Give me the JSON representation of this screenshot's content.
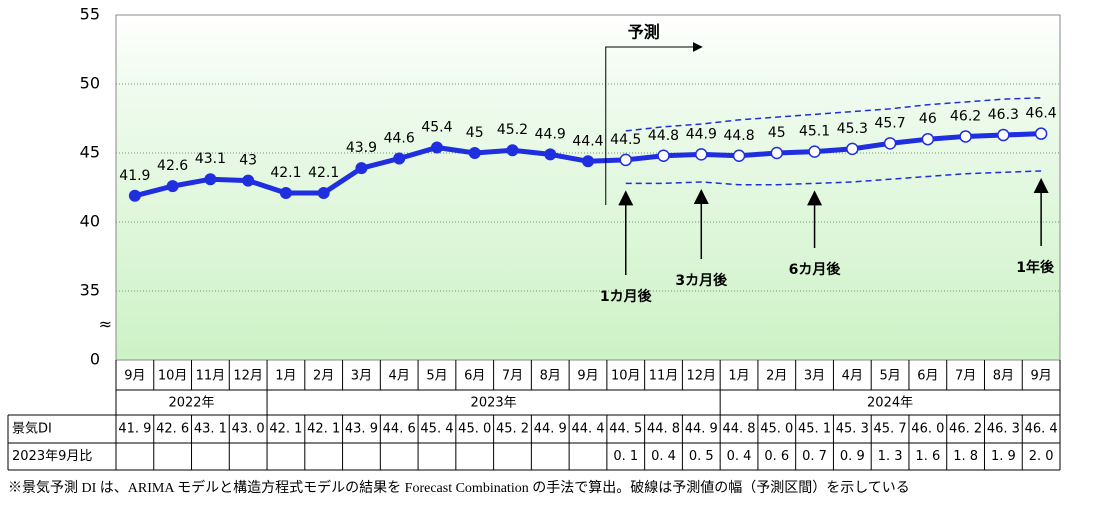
{
  "chart_data": {
    "type": "line",
    "categories": [
      "9月",
      "10月",
      "11月",
      "12月",
      "1月",
      "2月",
      "3月",
      "4月",
      "5月",
      "6月",
      "7月",
      "8月",
      "9月",
      "10月",
      "11月",
      "12月",
      "1月",
      "2月",
      "3月",
      "4月",
      "5月",
      "6月",
      "7月",
      "8月",
      "9月"
    ],
    "years": [
      "2022年",
      "2023年",
      "2024年"
    ],
    "values": [
      41.9,
      42.6,
      43.1,
      43.0,
      42.1,
      42.1,
      43.9,
      44.6,
      45.4,
      45.0,
      45.2,
      44.9,
      44.4,
      44.5,
      44.8,
      44.9,
      44.8,
      45.0,
      45.1,
      45.3,
      45.7,
      46.0,
      46.2,
      46.3,
      46.4
    ],
    "upper": [
      null,
      null,
      null,
      null,
      null,
      null,
      null,
      null,
      null,
      null,
      null,
      null,
      null,
      46.6,
      46.9,
      47.1,
      47.4,
      47.6,
      47.8,
      48.0,
      48.2,
      48.5,
      48.7,
      48.9,
      49.0
    ],
    "lower": [
      null,
      null,
      null,
      null,
      null,
      null,
      null,
      null,
      null,
      null,
      null,
      null,
      null,
      42.8,
      42.8,
      42.9,
      42.7,
      42.7,
      42.8,
      42.9,
      43.1,
      43.3,
      43.5,
      43.6,
      43.7
    ],
    "color": "#1f2fe0",
    "ylim": [
      0,
      55
    ],
    "yticks": [
      0,
      35,
      40,
      45,
      50,
      55
    ],
    "axis_break": true,
    "grid": true,
    "forecast_label": "予測",
    "horizons": [
      {
        "label": "1カ月後",
        "index": 13
      },
      {
        "label": "3カ月後",
        "index": 15
      },
      {
        "label": "6カ月後",
        "index": 18
      },
      {
        "label": "1年後",
        "index": 24
      }
    ]
  },
  "table": {
    "row_labels": [
      "景気DI",
      "2023年9月比"
    ],
    "rows": [
      [
        "41. 9",
        "42. 6",
        "43. 1",
        "43. 0",
        "42. 1",
        "42. 1",
        "43. 9",
        "44. 6",
        "45. 4",
        "45. 0",
        "45. 2",
        "44. 9",
        "44. 4",
        "44. 5",
        "44. 8",
        "44. 9",
        "44. 8",
        "45. 0",
        "45. 1",
        "45. 3",
        "45. 7",
        "46. 0",
        "46. 2",
        "46. 3",
        "46. 4"
      ],
      [
        null,
        null,
        null,
        null,
        null,
        null,
        null,
        null,
        null,
        null,
        null,
        null,
        null,
        "0. 1",
        "0. 4",
        "0. 5",
        "0. 4",
        "0. 6",
        "0. 7",
        "0. 9",
        "1. 3",
        "1. 6",
        "1. 8",
        "1. 9",
        "2. 0"
      ]
    ]
  },
  "footnote": "※景気予測 DI は、ARIMA モデルと構造方程式モデルの結果を Forecast Combination の手法で算出。破線は予測値の幅（予測区間）を示している"
}
